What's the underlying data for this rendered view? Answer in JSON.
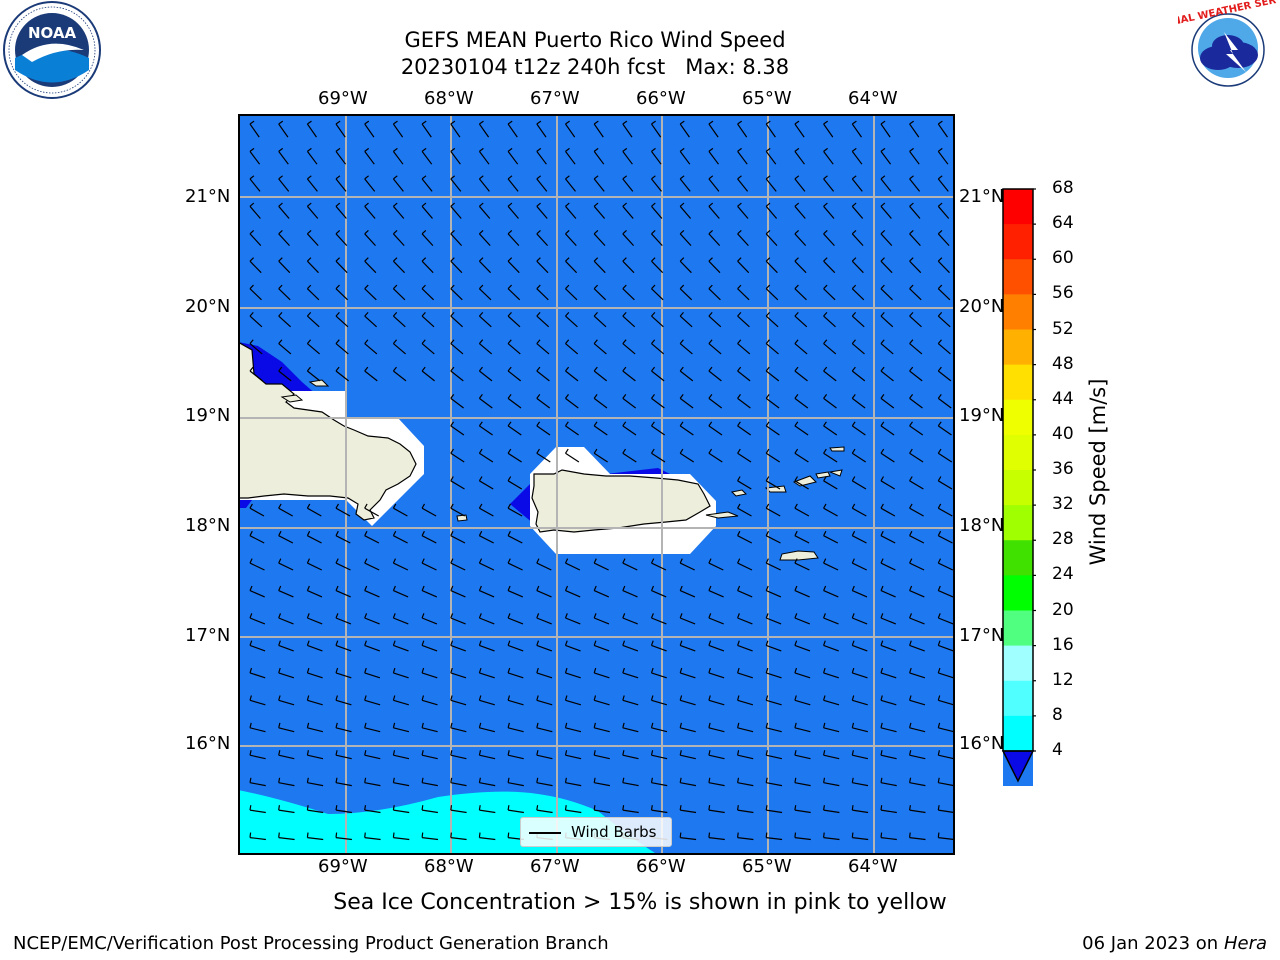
{
  "title": {
    "line1": "GEFS MEAN Puerto Rico Wind Speed",
    "line2": "20230104 t12z 240h fcst   Max: 8.38"
  },
  "logos": {
    "left": {
      "name": "noaa-logo",
      "text": "NOAA"
    },
    "right": {
      "name": "nws-logo",
      "text": "NATIONAL WEATHER SERVICE"
    }
  },
  "map": {
    "lon_labels": [
      "69°W",
      "68°W",
      "67°W",
      "66°W",
      "65°W",
      "64°W"
    ],
    "lat_labels": [
      "21°N",
      "20°N",
      "19°N",
      "18°N",
      "17°N",
      "16°N"
    ],
    "ocean_color": "#1e78f0",
    "land_color": "#eeeedc",
    "low_wind_color": "#0a0ae6",
    "cyan_color": "#00ffff",
    "legend_label": "Wind Barbs"
  },
  "colorbar": {
    "label": "Wind Speed [m/s]",
    "ticks": [
      "68",
      "64",
      "60",
      "56",
      "52",
      "48",
      "44",
      "40",
      "36",
      "32",
      "28",
      "24",
      "20",
      "16",
      "12",
      "8",
      "4"
    ],
    "colors": [
      "#ff0000",
      "#ff2000",
      "#ff5000",
      "#ff8000",
      "#ffb000",
      "#ffe000",
      "#f0ff00",
      "#e0ff00",
      "#c8ff00",
      "#a0ff00",
      "#40e000",
      "#00ff00",
      "#50ff80",
      "#a0ffff",
      "#50ffff",
      "#00ffff",
      "#1e78f0"
    ],
    "extend_color": "#0a0ae6"
  },
  "caption": "Sea Ice Concentration > 15% is shown in pink to yellow",
  "footer": {
    "left": "NCEP/EMC/Verification Post Processing Product Generation Branch",
    "right_prefix": "06 Jan 2023 on ",
    "right_host": "Hera"
  }
}
